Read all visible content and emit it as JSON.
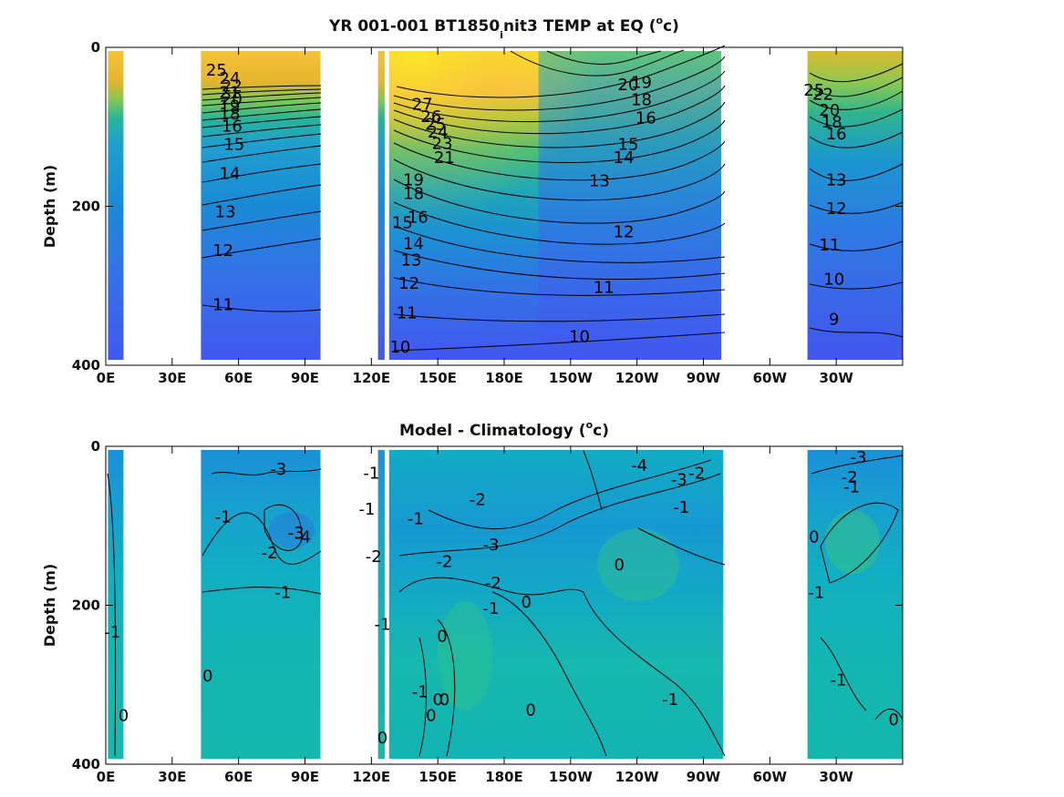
{
  "chart_data": [
    {
      "type": "heatmap",
      "title_parts": [
        "YR 001-001 BT1850",
        "i",
        "nit3 TEMP at EQ (",
        "o",
        "c)"
      ],
      "ylabel": "Depth (m)",
      "x_range_deg_east": [
        0,
        360
      ],
      "ylim": [
        0,
        400
      ],
      "yticks": [
        0,
        200,
        400
      ],
      "xticks": [
        {
          "lon": 0,
          "label": "0E"
        },
        {
          "lon": 30,
          "label": "30E"
        },
        {
          "lon": 60,
          "label": "60E"
        },
        {
          "lon": 90,
          "label": "90E"
        },
        {
          "lon": 120,
          "label": "120E"
        },
        {
          "lon": 150,
          "label": "150E"
        },
        {
          "lon": 180,
          "label": "180E"
        },
        {
          "lon": 210,
          "label": "150W"
        },
        {
          "lon": 240,
          "label": "120W"
        },
        {
          "lon": 270,
          "label": "90W"
        },
        {
          "lon": 300,
          "label": "60W"
        },
        {
          "lon": 330,
          "label": "30W"
        }
      ],
      "ocean_segments_lon": [
        [
          1,
          8
        ],
        [
          43,
          97
        ],
        [
          123,
          126
        ],
        [
          128,
          278
        ],
        [
          317,
          360
        ]
      ],
      "colormap": "parula",
      "color_range": [
        5,
        30
      ],
      "contour_levels": [
        10,
        11,
        12,
        13,
        14,
        15,
        16,
        17,
        18,
        19,
        20,
        21,
        22,
        23,
        24,
        25,
        26,
        27
      ],
      "contour_labels": [
        {
          "text": "25",
          "lon": 50,
          "depth": 30
        },
        {
          "text": "24",
          "lon": 56,
          "depth": 40
        },
        {
          "text": "22",
          "lon": 57,
          "depth": 50
        },
        {
          "text": "21",
          "lon": 56,
          "depth": 58
        },
        {
          "text": "20",
          "lon": 57,
          "depth": 66
        },
        {
          "text": "19",
          "lon": 56,
          "depth": 75
        },
        {
          "text": "18",
          "lon": 56,
          "depth": 85
        },
        {
          "text": "16",
          "lon": 57,
          "depth": 100
        },
        {
          "text": "15",
          "lon": 58,
          "depth": 123
        },
        {
          "text": "14",
          "lon": 56,
          "depth": 160
        },
        {
          "text": "13",
          "lon": 54,
          "depth": 208
        },
        {
          "text": "12",
          "lon": 53,
          "depth": 257
        },
        {
          "text": "11",
          "lon": 53,
          "depth": 325
        },
        {
          "text": "27",
          "lon": 143,
          "depth": 73
        },
        {
          "text": "26",
          "lon": 147,
          "depth": 88
        },
        {
          "text": "25",
          "lon": 149,
          "depth": 98
        },
        {
          "text": "24",
          "lon": 150,
          "depth": 108
        },
        {
          "text": "23",
          "lon": 152,
          "depth": 122
        },
        {
          "text": "21",
          "lon": 153,
          "depth": 140
        },
        {
          "text": "20",
          "lon": 236,
          "depth": 48
        },
        {
          "text": "19",
          "lon": 242,
          "depth": 45
        },
        {
          "text": "18",
          "lon": 242,
          "depth": 67
        },
        {
          "text": "16",
          "lon": 244,
          "depth": 90
        },
        {
          "text": "15",
          "lon": 236,
          "depth": 123
        },
        {
          "text": "14",
          "lon": 234,
          "depth": 140
        },
        {
          "text": "13",
          "lon": 223,
          "depth": 169
        },
        {
          "text": "19",
          "lon": 139,
          "depth": 168
        },
        {
          "text": "18",
          "lon": 139,
          "depth": 185
        },
        {
          "text": "16",
          "lon": 141,
          "depth": 215
        },
        {
          "text": "15",
          "lon": 134,
          "depth": 222
        },
        {
          "text": "14",
          "lon": 139,
          "depth": 248
        },
        {
          "text": "13",
          "lon": 138,
          "depth": 269
        },
        {
          "text": "12",
          "lon": 137,
          "depth": 298
        },
        {
          "text": "11",
          "lon": 136,
          "depth": 335
        },
        {
          "text": "10",
          "lon": 133,
          "depth": 378
        },
        {
          "text": "12",
          "lon": 234,
          "depth": 233
        },
        {
          "text": "11",
          "lon": 225,
          "depth": 303
        },
        {
          "text": "10",
          "lon": 214,
          "depth": 365
        },
        {
          "text": "25",
          "lon": 320,
          "depth": 55
        },
        {
          "text": "22",
          "lon": 324,
          "depth": 60
        },
        {
          "text": "20",
          "lon": 327,
          "depth": 80
        },
        {
          "text": "18",
          "lon": 328,
          "depth": 95
        },
        {
          "text": "16",
          "lon": 330,
          "depth": 110
        },
        {
          "text": "13",
          "lon": 330,
          "depth": 168
        },
        {
          "text": "12",
          "lon": 330,
          "depth": 204
        },
        {
          "text": "11",
          "lon": 327,
          "depth": 250
        },
        {
          "text": "10",
          "lon": 329,
          "depth": 293
        },
        {
          "text": "9",
          "lon": 329,
          "depth": 343
        }
      ]
    },
    {
      "type": "heatmap",
      "title_parts": [
        "Model - Climatology (",
        "o",
        "c)"
      ],
      "ylabel": "Depth (m)",
      "x_range_deg_east": [
        0,
        360
      ],
      "ylim": [
        0,
        400
      ],
      "yticks": [
        0,
        200,
        400
      ],
      "xticks": [
        {
          "lon": 0,
          "label": "0E"
        },
        {
          "lon": 30,
          "label": "30E"
        },
        {
          "lon": 60,
          "label": "60E"
        },
        {
          "lon": 90,
          "label": "90E"
        },
        {
          "lon": 120,
          "label": "120E"
        },
        {
          "lon": 150,
          "label": "150E"
        },
        {
          "lon": 180,
          "label": "180E"
        },
        {
          "lon": 210,
          "label": "150W"
        },
        {
          "lon": 240,
          "label": "120W"
        },
        {
          "lon": 270,
          "label": "90W"
        },
        {
          "lon": 300,
          "label": "60W"
        },
        {
          "lon": 330,
          "label": "30W"
        }
      ],
      "ocean_segments_lon": [
        [
          1,
          8
        ],
        [
          43,
          97
        ],
        [
          123,
          126
        ],
        [
          128,
          279
        ],
        [
          317,
          360
        ]
      ],
      "colormap": "parula",
      "color_range": [
        -8,
        8
      ],
      "contour_labels": [
        {
          "text": "-3",
          "lon": 78,
          "depth": 30
        },
        {
          "text": "-1",
          "lon": 53,
          "depth": 90
        },
        {
          "text": "-3",
          "lon": 86,
          "depth": 110
        },
        {
          "text": "-4",
          "lon": 89,
          "depth": 115
        },
        {
          "text": "-2",
          "lon": 74,
          "depth": 135
        },
        {
          "text": "-1",
          "lon": 80,
          "depth": 185
        },
        {
          "text": "-1",
          "lon": 3,
          "depth": 235
        },
        {
          "text": "0",
          "lon": 46,
          "depth": 290
        },
        {
          "text": "0",
          "lon": 8,
          "depth": 340
        },
        {
          "text": "-1",
          "lon": 120,
          "depth": 35
        },
        {
          "text": "-1",
          "lon": 118,
          "depth": 80
        },
        {
          "text": "-2",
          "lon": 121,
          "depth": 140
        },
        {
          "text": "-1",
          "lon": 125,
          "depth": 225
        },
        {
          "text": "0",
          "lon": 125,
          "depth": 368
        },
        {
          "text": "-2",
          "lon": 168,
          "depth": 68
        },
        {
          "text": "-1",
          "lon": 140,
          "depth": 92
        },
        {
          "text": "-2",
          "lon": 153,
          "depth": 146
        },
        {
          "text": "-3",
          "lon": 174,
          "depth": 125
        },
        {
          "text": "-2",
          "lon": 175,
          "depth": 173
        },
        {
          "text": "-1",
          "lon": 174,
          "depth": 205
        },
        {
          "text": "0",
          "lon": 190,
          "depth": 197
        },
        {
          "text": "0",
          "lon": 152,
          "depth": 240
        },
        {
          "text": "-1",
          "lon": 142,
          "depth": 310
        },
        {
          "text": "0",
          "lon": 150,
          "depth": 320
        },
        {
          "text": "0",
          "lon": 153,
          "depth": 320
        },
        {
          "text": "0",
          "lon": 147,
          "depth": 340
        },
        {
          "text": "0",
          "lon": 192,
          "depth": 333
        },
        {
          "text": "0",
          "lon": 232,
          "depth": 150
        },
        {
          "text": "-4",
          "lon": 241,
          "depth": 25
        },
        {
          "text": "-3",
          "lon": 259,
          "depth": 43
        },
        {
          "text": "-1",
          "lon": 260,
          "depth": 78
        },
        {
          "text": "-2",
          "lon": 267,
          "depth": 35
        },
        {
          "text": "-1",
          "lon": 255,
          "depth": 320
        },
        {
          "text": "-3",
          "lon": 340,
          "depth": 15
        },
        {
          "text": "-2",
          "lon": 336,
          "depth": 40
        },
        {
          "text": "-1",
          "lon": 337,
          "depth": 52
        },
        {
          "text": "0",
          "lon": 320,
          "depth": 115
        },
        {
          "text": "-1",
          "lon": 321,
          "depth": 185
        },
        {
          "text": "-1",
          "lon": 331,
          "depth": 295
        },
        {
          "text": "0",
          "lon": 356,
          "depth": 345
        }
      ]
    }
  ]
}
